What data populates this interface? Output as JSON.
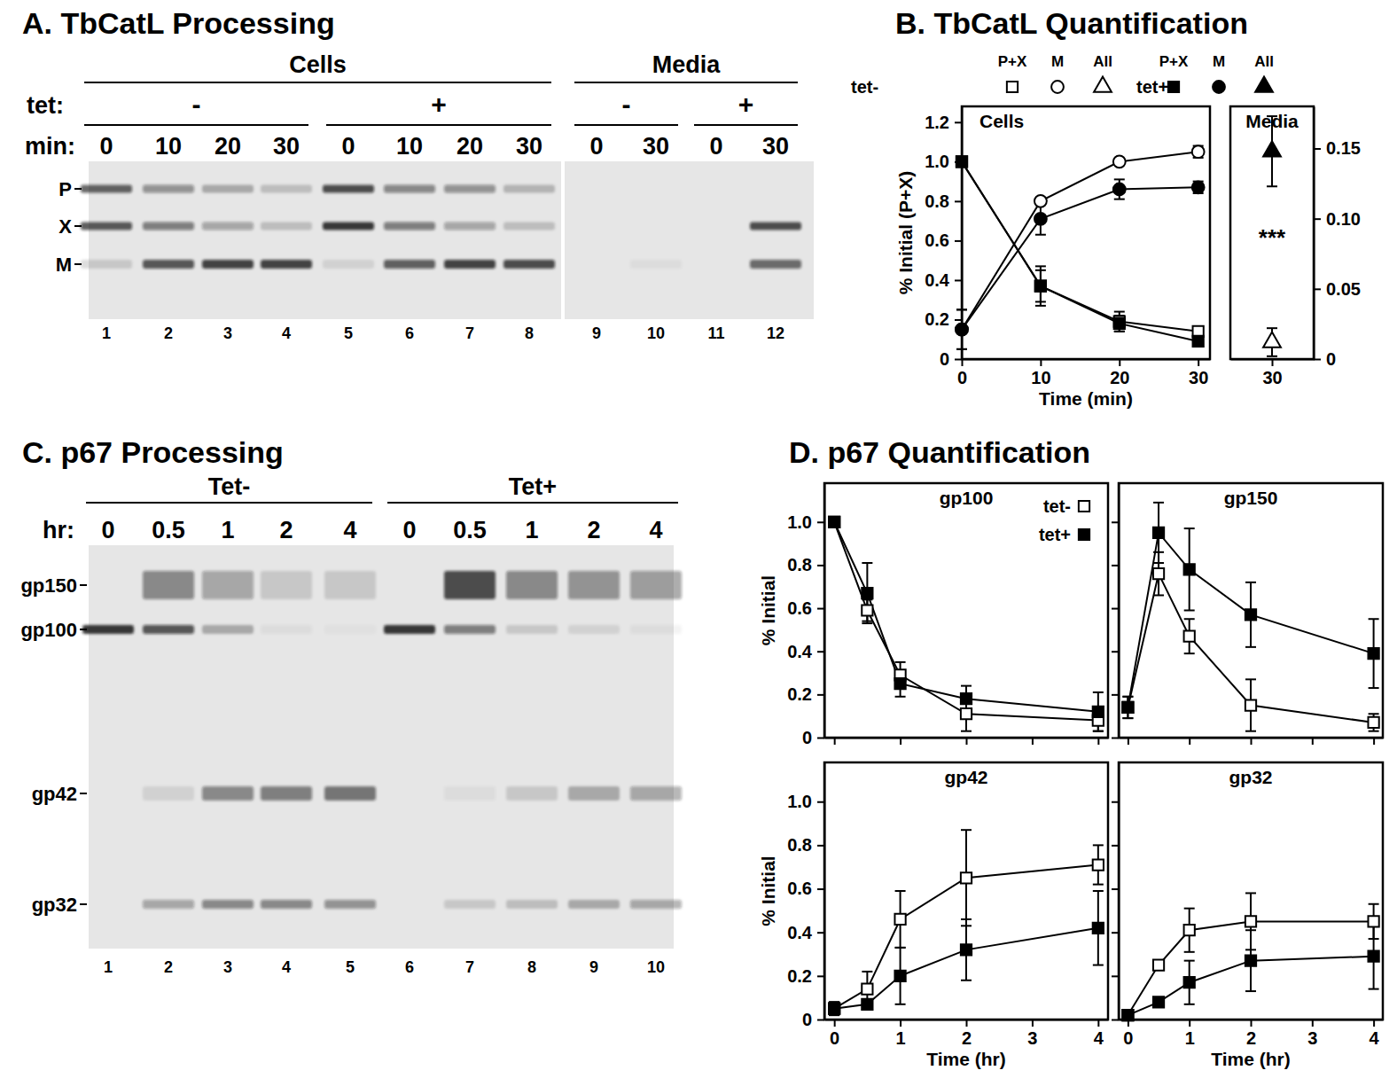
{
  "chart_data": [
    {
      "type": "gel",
      "title": "A.  TbCatL Processing",
      "groups": [
        "Cells",
        "Cells",
        "Cells",
        "Cells",
        "Cells",
        "Cells",
        "Cells",
        "Cells",
        "Media",
        "Media",
        "Media",
        "Media"
      ],
      "condition_label": "tet:",
      "conditions": [
        "-",
        "-",
        "-",
        "-",
        "+",
        "+",
        "+",
        "+",
        "-",
        "-",
        "+",
        "+"
      ],
      "time_label": "min:",
      "times": [
        0,
        10,
        20,
        30,
        0,
        10,
        20,
        30,
        0,
        30,
        0,
        30
      ],
      "lanes": [
        1,
        2,
        3,
        4,
        5,
        6,
        7,
        8,
        9,
        10,
        11,
        12
      ],
      "bands": [
        "P",
        "X",
        "M"
      ],
      "intensity": [
        [
          0.7,
          0.75,
          0.15
        ],
        [
          0.45,
          0.55,
          0.75
        ],
        [
          0.3,
          0.35,
          0.85
        ],
        [
          0.2,
          0.2,
          0.85
        ],
        [
          0.8,
          0.9,
          0.1
        ],
        [
          0.5,
          0.55,
          0.7
        ],
        [
          0.45,
          0.35,
          0.85
        ],
        [
          0.25,
          0.2,
          0.8
        ],
        [
          0,
          0,
          0
        ],
        [
          0,
          0,
          0.05
        ],
        [
          0,
          0,
          0
        ],
        [
          0,
          0.8,
          0.65
        ]
      ]
    },
    {
      "type": "line",
      "title": "B.  TbCatL Quantification",
      "subtitle": "Cells",
      "xlabel": "Time (min)",
      "ylabel": "% Initial (P+X)",
      "x": [
        0,
        10,
        20,
        30
      ],
      "xlim": [
        0,
        31.5
      ],
      "xticks": [
        0,
        10,
        20,
        30
      ],
      "ylim": [
        0,
        1.28
      ],
      "yticks": [
        0,
        0.2,
        0.4,
        0.6,
        0.8,
        {
          "value": 1,
          "label": "1.0"
        },
        1.2
      ],
      "legend": "top",
      "series": [
        {
          "name": "P+X",
          "group": "tet-",
          "color": "#000000",
          "marker": "square-open",
          "values": [
            1.0,
            0.37,
            0.19,
            0.14
          ],
          "errors": [
            0.01,
            0.1,
            0.05,
            0.02
          ]
        },
        {
          "name": "M",
          "group": "tet-",
          "color": "#000000",
          "marker": "circle-open",
          "values": [
            0.15,
            0.8,
            1.0,
            1.05
          ],
          "errors": [
            0.1,
            0.01,
            0.01,
            0.03
          ]
        },
        {
          "name": "P+X",
          "group": "tet+",
          "color": "#000000",
          "marker": "square",
          "values": [
            1.0,
            0.37,
            0.18,
            0.09
          ],
          "errors": [
            0.02,
            0.08,
            0.04,
            0.02
          ]
        },
        {
          "name": "M",
          "group": "tet+",
          "color": "#000000",
          "marker": "circle",
          "values": [
            0.15,
            0.71,
            0.86,
            0.87
          ],
          "errors": [
            0.1,
            0.08,
            0.05,
            0.03
          ]
        }
      ]
    },
    {
      "type": "scatter",
      "subtitle": "Media",
      "x": [
        30
      ],
      "xlim": [
        25,
        35
      ],
      "xticks": [
        30
      ],
      "ylim": [
        0,
        0.18
      ],
      "yticks": [
        0,
        0.05,
        {
          "value": 0.1,
          "label": "0.10"
        },
        0.15
      ],
      "annotations": [
        {
          "text": "***"
        }
      ],
      "series": [
        {
          "name": "All",
          "group": "tet-",
          "color": "#000000",
          "marker": "triangle-open",
          "values": [
            0.012
          ],
          "errors": [
            0.01
          ]
        },
        {
          "name": "All",
          "group": "tet+",
          "color": "#000000",
          "marker": "triangle",
          "values": [
            0.148
          ],
          "errors": [
            0.025
          ]
        }
      ]
    },
    {
      "type": "gel",
      "title": "C.  p67 Processing",
      "groups": [
        "Tet-",
        "Tet-",
        "Tet-",
        "Tet-",
        "Tet-",
        "Tet+",
        "Tet+",
        "Tet+",
        "Tet+",
        "Tet+"
      ],
      "time_label": "hr:",
      "times": [
        0,
        0.5,
        1,
        2,
        4,
        0,
        0.5,
        1,
        2,
        4
      ],
      "lanes": [
        1,
        2,
        3,
        4,
        5,
        6,
        7,
        8,
        9,
        10
      ],
      "bands": [
        "gp150",
        "gp100",
        "gp42",
        "gp32"
      ],
      "intensity": [
        [
          0,
          0.95,
          0,
          0
        ],
        [
          0.5,
          0.75,
          0.1,
          0.35
        ],
        [
          0.35,
          0.3,
          0.5,
          0.5
        ],
        [
          0.15,
          0.05,
          0.55,
          0.5
        ],
        [
          0.15,
          0.03,
          0.6,
          0.45
        ],
        [
          0,
          0.95,
          0,
          0
        ],
        [
          0.8,
          0.55,
          0.05,
          0.15
        ],
        [
          0.5,
          0.15,
          0.15,
          0.2
        ],
        [
          0.45,
          0.1,
          0.3,
          0.3
        ],
        [
          0.4,
          0.05,
          0.35,
          0.35
        ]
      ]
    },
    {
      "type": "line",
      "title": "D.  p67 Quantification",
      "subtitle": "gp100",
      "ylabel": "% Initial",
      "x": [
        0,
        0.5,
        1,
        2,
        4
      ],
      "xlim": [
        -0.15,
        4.15
      ],
      "xticks": [
        0,
        1,
        2,
        3,
        4
      ],
      "ylim": [
        0,
        1.18
      ],
      "yticks": [
        0,
        0.2,
        0.4,
        0.6,
        0.8,
        {
          "value": 1,
          "label": "1.0"
        }
      ],
      "tick_labels": "y",
      "legend": "upper right",
      "series": [
        {
          "name": "tet-",
          "color": "#000000",
          "marker": "square-open",
          "values": [
            1.0,
            0.59,
            0.29,
            0.11,
            0.08
          ],
          "errors": [
            0.01,
            0.05,
            0.06,
            0.08,
            0.05
          ]
        },
        {
          "name": "tet+",
          "color": "#000000",
          "marker": "square",
          "values": [
            1.0,
            0.67,
            0.25,
            0.18,
            0.12
          ],
          "errors": [
            0.01,
            0.14,
            0.06,
            0.06,
            0.09
          ]
        }
      ]
    },
    {
      "type": "line",
      "subtitle": "gp150",
      "x": [
        0,
        0.5,
        1,
        2,
        4
      ],
      "xlim": [
        -0.15,
        4.15
      ],
      "xticks": [
        0,
        1,
        2,
        3,
        4
      ],
      "ylim": [
        0,
        1.18
      ],
      "yticks": [
        0,
        0.2,
        0.4,
        0.6,
        0.8,
        {
          "value": 1,
          "label": "1.0"
        }
      ],
      "tick_labels": false,
      "series": [
        {
          "name": "tet-",
          "color": "#000000",
          "marker": "square-open",
          "values": [
            0.14,
            0.76,
            0.47,
            0.15,
            0.07
          ],
          "errors": [
            0.05,
            0.1,
            0.08,
            0.12,
            0.04
          ]
        },
        {
          "name": "tet+",
          "color": "#000000",
          "marker": "square",
          "values": [
            0.14,
            0.95,
            0.78,
            0.57,
            0.39
          ],
          "errors": [
            0.05,
            0.14,
            0.19,
            0.15,
            0.16
          ]
        }
      ]
    },
    {
      "type": "line",
      "subtitle": "gp42",
      "xlabel": "Time (hr)",
      "ylabel": "% Initial",
      "x": [
        0,
        0.5,
        1,
        2,
        4
      ],
      "xlim": [
        -0.15,
        4.15
      ],
      "xticks": [
        0,
        1,
        2,
        3,
        4
      ],
      "ylim": [
        0,
        1.18
      ],
      "yticks": [
        0,
        0.2,
        0.4,
        0.6,
        0.8,
        {
          "value": 1,
          "label": "1.0"
        }
      ],
      "series": [
        {
          "name": "tet-",
          "color": "#000000",
          "marker": "square-open",
          "values": [
            0.05,
            0.14,
            0.46,
            0.65,
            0.71
          ],
          "errors": [
            0.03,
            0.08,
            0.13,
            0.22,
            0.09
          ]
        },
        {
          "name": "tet+",
          "color": "#000000",
          "marker": "square",
          "values": [
            0.05,
            0.07,
            0.2,
            0.32,
            0.42
          ],
          "errors": [
            0.03,
            0.02,
            0.13,
            0.14,
            0.17
          ]
        }
      ]
    },
    {
      "type": "line",
      "subtitle": "gp32",
      "xlabel": "Time (hr)",
      "x": [
        0,
        0.5,
        1,
        2,
        4
      ],
      "xlim": [
        -0.15,
        4.15
      ],
      "xticks": [
        0,
        1,
        2,
        3,
        4
      ],
      "ylim": [
        0,
        1.18
      ],
      "yticks": [
        0,
        0.2,
        0.4,
        0.6,
        0.8,
        {
          "value": 1,
          "label": "1.0"
        }
      ],
      "tick_labels": "x",
      "series": [
        {
          "name": "tet-",
          "color": "#000000",
          "marker": "square-open",
          "values": [
            0.02,
            0.25,
            0.41,
            0.45,
            0.45
          ],
          "errors": [
            0.01,
            0.01,
            0.1,
            0.13,
            0.08
          ]
        },
        {
          "name": "tet+",
          "color": "#000000",
          "marker": "square",
          "values": [
            0.02,
            0.08,
            0.17,
            0.27,
            0.29
          ],
          "errors": [
            0.01,
            0.01,
            0.1,
            0.14,
            0.15
          ]
        }
      ]
    }
  ]
}
